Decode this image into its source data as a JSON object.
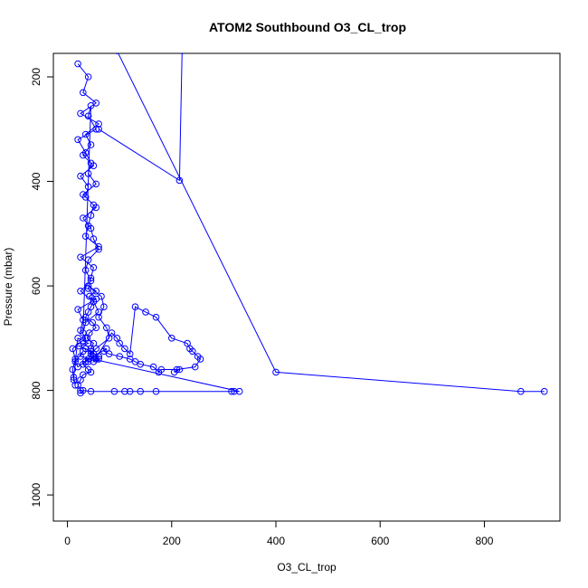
{
  "chart_data": {
    "type": "scatter",
    "title": "ATOM2 Southbound O3_CL_trop",
    "xlabel": "O3_CL_trop",
    "ylabel": "Pressure (mbar)",
    "xlim": [
      -27,
      945
    ],
    "ylim": [
      1050,
      155
    ],
    "y_reversed": true,
    "x_ticks": [
      0,
      200,
      400,
      600,
      800
    ],
    "y_ticks": [
      200,
      400,
      600,
      800,
      1000
    ],
    "series_color": "#0000FF",
    "marker": "open-circle",
    "connected": true,
    "grid": false,
    "series": [
      {
        "segments": [
          [
            [
              95,
              150
            ],
            [
              400,
              765
            ],
            [
              870,
              802
            ],
            [
              915,
              802
            ]
          ],
          [
            [
              220,
              150
            ],
            [
              215,
              398
            ],
            [
              60,
              300
            ]
          ]
        ],
        "x": [
          20,
          40,
          30,
          55,
          25,
          60,
          35,
          45,
          30,
          50,
          25,
          40,
          35,
          55,
          30,
          45,
          50,
          60,
          40,
          35,
          45,
          25,
          50,
          60,
          35,
          30,
          45,
          40,
          55,
          20,
          35,
          45,
          40,
          55,
          30,
          50,
          45,
          40,
          35,
          60,
          25,
          50,
          45,
          40,
          55,
          20,
          30,
          25,
          35,
          10,
          15,
          10,
          12,
          15,
          12,
          20,
          30,
          40,
          22,
          35,
          45,
          50,
          60,
          55,
          40,
          45,
          50,
          38,
          42,
          55,
          48,
          35,
          40,
          45,
          50,
          42,
          55,
          40,
          65,
          70,
          60,
          75,
          80,
          55,
          45,
          60,
          50,
          85,
          95,
          100,
          110,
          120,
          130,
          150,
          170,
          200,
          230,
          235,
          240,
          250,
          255,
          245,
          210,
          205,
          215,
          180,
          175,
          165,
          140,
          130,
          120,
          100,
          80,
          70,
          75,
          50,
          35,
          30,
          40,
          45,
          30,
          25,
          20,
          25,
          25,
          30,
          45,
          90,
          110,
          120,
          140,
          170,
          315,
          320,
          330,
          25,
          30,
          15,
          20,
          40,
          60,
          35
        ],
        "y": [
          175,
          200,
          230,
          250,
          270,
          290,
          310,
          330,
          350,
          370,
          390,
          410,
          430,
          450,
          470,
          490,
          510,
          530,
          550,
          570,
          590,
          610,
          630,
          650,
          670,
          690,
          255,
          275,
          300,
          320,
          345,
          365,
          385,
          405,
          425,
          445,
          465,
          485,
          505,
          525,
          545,
          565,
          585,
          605,
          625,
          645,
          665,
          685,
          700,
          720,
          740,
          760,
          780,
          790,
          775,
          700,
          705,
          710,
          715,
          720,
          725,
          730,
          735,
          740,
          745,
          720,
          710,
          700,
          690,
          680,
          670,
          660,
          650,
          640,
          630,
          620,
          610,
          600,
          620,
          640,
          660,
          680,
          700,
          720,
          730,
          740,
          745,
          690,
          700,
          710,
          720,
          730,
          640,
          650,
          660,
          700,
          710,
          720,
          725,
          735,
          740,
          755,
          760,
          765,
          760,
          760,
          765,
          755,
          750,
          745,
          740,
          735,
          730,
          725,
          720,
          735,
          745,
          750,
          760,
          765,
          770,
          780,
          790,
          800,
          805,
          800,
          802,
          802,
          802,
          802,
          802,
          802,
          802,
          802,
          802,
          735,
          725,
          745,
          755,
          740,
          735,
          720
        ]
      }
    ]
  }
}
